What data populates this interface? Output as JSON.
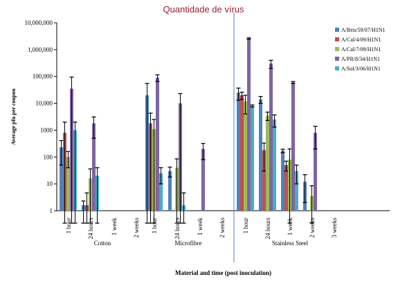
{
  "overlay_title": "Quantidade de vírus",
  "chart_data": {
    "type": "bar",
    "title": "",
    "xlabel": "Material and time (post inoculation)",
    "ylabel": "Average pfu per coupon",
    "y_scale": "log",
    "ylim": [
      1,
      10000000
    ],
    "y_ticks": [
      "1",
      "10",
      "100",
      "1000",
      "10,000",
      "100,000",
      "1,000,000",
      "10,000,000"
    ],
    "grid": false,
    "legend_position": "right",
    "groups": [
      {
        "name": "Cotton",
        "categories": [
          "1 hour",
          "24 hours",
          "1 week",
          "2 weeks"
        ]
      },
      {
        "name": "Microfibre",
        "categories": [
          "1 hour",
          "24 hours",
          "1 week",
          "2 weeks"
        ]
      },
      {
        "name": "Stainless Steel",
        "categories": [
          "1 hour",
          "24 hours",
          "1 week",
          "2 weeks",
          "3 weeks"
        ]
      }
    ],
    "series": [
      {
        "name": "A/Bris/59/07/H1N1",
        "color": "#4f81bd",
        "values": [
          230,
          1.6,
          null,
          null,
          20000,
          30,
          null,
          null,
          25000,
          14000,
          170,
          12,
          null
        ],
        "errors": [
          180,
          0.7,
          null,
          null,
          35000,
          12,
          null,
          null,
          12000,
          4000,
          25,
          10,
          null
        ]
      },
      {
        "name": "A/Cal/4/09/H1N1",
        "color": "#c0504d",
        "values": [
          800,
          1.6,
          null,
          null,
          1800,
          null,
          null,
          null,
          20000,
          180,
          50,
          null,
          null
        ],
        "errors": [
          1200,
          3,
          null,
          null,
          2500,
          null,
          null,
          null,
          6000,
          150,
          20,
          null,
          null
        ]
      },
      {
        "name": "A/Cal/7/09/H1N1",
        "color": "#9bbb59",
        "values": [
          100,
          16,
          null,
          null,
          1100,
          40,
          null,
          null,
          12000,
          3500,
          80,
          3.5,
          null
        ],
        "errors": [
          60,
          20,
          null,
          null,
          1400,
          45,
          null,
          null,
          8000,
          1200,
          120,
          5,
          null
        ],
        "labels": [
          "",
          "",
          "",
          "",
          "",
          "",
          "",
          "",
          "",
          "",
          "",
          "",
          ""
        ]
      },
      {
        "name": "A/PR/8/34/H1N1",
        "color": "#8064a2",
        "values": [
          35000,
          1800,
          null,
          null,
          90000,
          10000,
          200,
          null,
          2600000,
          300000,
          60000,
          800,
          null
        ],
        "errors": [
          60000,
          1300,
          null,
          null,
          25000,
          13000,
          120,
          null,
          150000,
          100000,
          5000,
          600,
          null
        ]
      },
      {
        "name": "A/Sol/3/06/H1N1",
        "color": "#4bacc6",
        "values": [
          1000,
          20,
          null,
          null,
          25,
          1.6,
          null,
          null,
          8000,
          2500,
          30,
          null,
          null
        ],
        "errors": [
          1000,
          20,
          null,
          null,
          15,
          3,
          null,
          null,
          700,
          1200,
          20,
          null,
          null
        ]
      }
    ]
  }
}
